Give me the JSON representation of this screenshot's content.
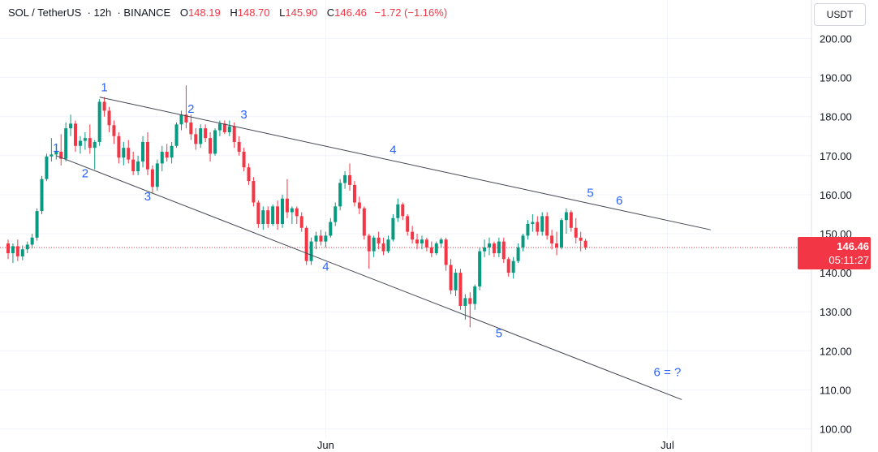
{
  "header": {
    "symbol": "SOL / TetherUS",
    "interval": "12h",
    "exchange": "BINANCE",
    "open_label": "O",
    "open": "148.19",
    "high_label": "H",
    "high": "148.70",
    "low_label": "L",
    "low": "145.90",
    "close_label": "C",
    "close": "146.46",
    "change": "−1.72 (−1.16%)"
  },
  "currency_button": "USDT",
  "price_badge": {
    "price": "146.46",
    "countdown": "05:11:27"
  },
  "colors": {
    "up": "#089981",
    "down": "#f23645",
    "label": "#2962ff",
    "line": "#434651",
    "axis_text": "#131722"
  },
  "chart_data": {
    "type": "candlestick",
    "ylim": [
      100,
      205
    ],
    "y_ticks": [
      "100.00",
      "110.00",
      "120.00",
      "130.00",
      "140.00",
      "150.00",
      "160.00",
      "170.00",
      "180.00",
      "190.00",
      "200.00"
    ],
    "x_ticks": [
      {
        "label": "Jun",
        "index": 66
      },
      {
        "label": "Jul",
        "index": 137
      }
    ],
    "last_price": 146.46,
    "candles": [
      [
        147.5,
        148.5,
        143.5,
        145.0
      ],
      [
        145.0,
        147.5,
        142.5,
        146.8
      ],
      [
        146.8,
        148.5,
        143.0,
        144.2
      ],
      [
        144.2,
        147.0,
        143.2,
        146.0
      ],
      [
        146.0,
        148.0,
        145.0,
        147.2
      ],
      [
        147.2,
        150.0,
        146.2,
        149.0
      ],
      [
        149.0,
        156.5,
        148.2,
        155.8
      ],
      [
        155.8,
        164.8,
        155.0,
        164.0
      ],
      [
        164.0,
        170.5,
        163.5,
        169.8
      ],
      [
        169.8,
        174.5,
        168.5,
        170.3
      ],
      [
        170.3,
        173.0,
        169.0,
        171.0
      ],
      [
        171.0,
        175.5,
        167.5,
        169.2
      ],
      [
        169.2,
        178.5,
        168.5,
        177.0
      ],
      [
        177.0,
        180.5,
        175.0,
        178.2
      ],
      [
        178.2,
        179.0,
        171.0,
        172.5
      ],
      [
        172.5,
        175.0,
        170.5,
        173.8
      ],
      [
        173.8,
        176.0,
        171.5,
        174.5
      ],
      [
        174.5,
        178.0,
        170.5,
        172.0
      ],
      [
        172.0,
        174.0,
        166.5,
        173.5
      ],
      [
        173.5,
        184.5,
        172.5,
        183.8
      ],
      [
        183.8,
        185.0,
        180.0,
        181.5
      ],
      [
        181.5,
        182.5,
        176.0,
        177.8
      ],
      [
        177.8,
        179.0,
        173.0,
        175.0
      ],
      [
        175.0,
        176.0,
        168.0,
        169.5
      ],
      [
        169.5,
        173.5,
        167.5,
        172.0
      ],
      [
        172.0,
        174.0,
        168.0,
        169.0
      ],
      [
        169.0,
        171.0,
        165.0,
        166.0
      ],
      [
        166.0,
        170.0,
        165.0,
        168.5
      ],
      [
        168.5,
        175.0,
        167.0,
        173.5
      ],
      [
        173.5,
        176.0,
        165.0,
        166.5
      ],
      [
        166.5,
        167.5,
        160.5,
        162.0
      ],
      [
        162.0,
        169.0,
        161.0,
        168.0
      ],
      [
        168.0,
        172.5,
        166.0,
        171.0
      ],
      [
        171.0,
        173.0,
        168.5,
        169.5
      ],
      [
        169.5,
        173.5,
        168.0,
        172.5
      ],
      [
        172.5,
        178.5,
        172.0,
        178.0
      ],
      [
        178.0,
        181.5,
        176.5,
        180.5
      ],
      [
        180.5,
        188.0,
        177.0,
        178.5
      ],
      [
        178.5,
        180.5,
        174.0,
        175.5
      ],
      [
        175.5,
        177.0,
        171.5,
        173.0
      ],
      [
        173.0,
        178.0,
        172.0,
        177.0
      ],
      [
        177.0,
        178.0,
        173.5,
        174.5
      ],
      [
        174.5,
        176.0,
        168.5,
        170.5
      ],
      [
        170.5,
        177.0,
        170.0,
        176.5
      ],
      [
        176.5,
        179.0,
        175.0,
        178.2
      ],
      [
        178.2,
        179.0,
        175.5,
        176.0
      ],
      [
        176.0,
        179.0,
        175.0,
        177.5
      ],
      [
        177.5,
        178.5,
        172.0,
        173.5
      ],
      [
        173.5,
        175.0,
        170.0,
        171.0
      ],
      [
        171.0,
        172.0,
        166.0,
        167.0
      ],
      [
        167.0,
        168.0,
        162.5,
        163.5
      ],
      [
        163.5,
        164.5,
        157.0,
        158.0
      ],
      [
        158.0,
        158.5,
        151.5,
        152.5
      ],
      [
        152.5,
        157.0,
        151.0,
        156.0
      ],
      [
        156.0,
        157.0,
        151.5,
        152.5
      ],
      [
        152.5,
        157.5,
        152.0,
        157.0
      ],
      [
        157.0,
        158.5,
        151.0,
        152.5
      ],
      [
        152.5,
        160.0,
        151.5,
        159.0
      ],
      [
        159.0,
        164.0,
        154.0,
        155.5
      ],
      [
        155.5,
        157.0,
        152.5,
        156.5
      ],
      [
        156.5,
        157.0,
        152.5,
        154.5
      ],
      [
        154.5,
        155.5,
        150.5,
        151.5
      ],
      [
        151.5,
        152.0,
        142.0,
        143.0
      ],
      [
        143.0,
        149.0,
        142.0,
        148.0
      ],
      [
        148.0,
        150.5,
        146.0,
        149.5
      ],
      [
        149.5,
        151.0,
        147.0,
        148.0
      ],
      [
        148.0,
        150.5,
        146.5,
        149.5
      ],
      [
        149.5,
        154.0,
        149.0,
        153.0
      ],
      [
        153.0,
        158.0,
        152.0,
        157.0
      ],
      [
        157.0,
        164.0,
        156.0,
        163.0
      ],
      [
        163.0,
        166.0,
        161.5,
        165.0
      ],
      [
        165.0,
        168.0,
        161.0,
        162.5
      ],
      [
        162.5,
        163.5,
        157.0,
        158.0
      ],
      [
        158.0,
        159.5,
        155.0,
        156.5
      ],
      [
        156.5,
        157.0,
        148.5,
        149.5
      ],
      [
        149.5,
        150.0,
        141.0,
        145.5
      ],
      [
        145.5,
        149.5,
        144.0,
        149.0
      ],
      [
        149.0,
        150.5,
        146.0,
        147.5
      ],
      [
        147.5,
        149.0,
        144.5,
        145.5
      ],
      [
        145.5,
        149.5,
        145.0,
        148.5
      ],
      [
        148.5,
        155.0,
        148.0,
        154.0
      ],
      [
        154.0,
        159.0,
        153.0,
        157.5
      ],
      [
        157.5,
        158.0,
        153.5,
        154.5
      ],
      [
        154.5,
        155.0,
        149.5,
        150.5
      ],
      [
        150.5,
        152.0,
        147.5,
        148.5
      ],
      [
        148.5,
        150.0,
        146.0,
        147.5
      ],
      [
        147.5,
        149.5,
        146.0,
        148.5
      ],
      [
        148.5,
        149.0,
        145.5,
        146.5
      ],
      [
        146.5,
        148.0,
        144.0,
        145.0
      ],
      [
        145.0,
        148.0,
        144.5,
        147.5
      ],
      [
        147.5,
        149.0,
        146.5,
        148.5
      ],
      [
        148.5,
        149.0,
        140.5,
        142.0
      ],
      [
        142.0,
        143.5,
        134.5,
        135.5
      ],
      [
        135.5,
        141.0,
        134.0,
        140.0
      ],
      [
        140.0,
        141.0,
        130.5,
        131.5
      ],
      [
        131.5,
        134.5,
        128.0,
        133.5
      ],
      [
        133.5,
        135.0,
        126.0,
        132.0
      ],
      [
        132.0,
        137.0,
        130.5,
        136.5
      ],
      [
        136.5,
        146.5,
        135.5,
        145.5
      ],
      [
        145.5,
        148.5,
        144.0,
        146.5
      ],
      [
        146.5,
        149.0,
        144.5,
        147.5
      ],
      [
        147.5,
        148.0,
        144.0,
        145.0
      ],
      [
        145.0,
        149.0,
        144.0,
        148.0
      ],
      [
        148.0,
        149.0,
        142.5,
        143.5
      ],
      [
        143.5,
        144.0,
        139.0,
        140.0
      ],
      [
        140.0,
        144.0,
        138.5,
        143.0
      ],
      [
        143.0,
        147.5,
        142.5,
        146.5
      ],
      [
        146.5,
        150.0,
        145.5,
        149.5
      ],
      [
        149.5,
        153.5,
        148.5,
        152.5
      ],
      [
        152.5,
        155.0,
        150.5,
        153.0
      ],
      [
        153.0,
        154.5,
        149.5,
        150.5
      ],
      [
        150.5,
        155.5,
        149.5,
        154.5
      ],
      [
        154.5,
        155.5,
        148.5,
        149.5
      ],
      [
        149.5,
        151.0,
        146.0,
        147.5
      ],
      [
        147.5,
        150.5,
        144.5,
        146.5
      ],
      [
        146.5,
        154.0,
        146.0,
        153.5
      ],
      [
        153.5,
        156.5,
        150.0,
        155.5
      ],
      [
        155.5,
        156.0,
        150.5,
        151.5
      ],
      [
        151.5,
        154.0,
        147.5,
        149.0
      ],
      [
        149.0,
        150.5,
        145.5,
        148.19
      ],
      [
        148.19,
        148.7,
        145.9,
        146.46
      ]
    ],
    "trendlines": [
      {
        "name": "upper",
        "from": [
          19,
          185.0
        ],
        "to": [
          146,
          151.0
        ]
      },
      {
        "name": "lower",
        "from": [
          10,
          170.0
        ],
        "to": [
          140,
          107.5
        ]
      }
    ],
    "annotations": [
      {
        "text": "1",
        "index": 20,
        "price": 186.5
      },
      {
        "text": "1",
        "index": 10,
        "price": 171.0
      },
      {
        "text": "2",
        "index": 16,
        "price": 164.5
      },
      {
        "text": "2",
        "index": 38,
        "price": 181.0
      },
      {
        "text": "3",
        "index": 29,
        "price": 158.5
      },
      {
        "text": "3",
        "index": 49,
        "price": 179.5
      },
      {
        "text": "4",
        "index": 66,
        "price": 140.5
      },
      {
        "text": "4",
        "index": 80,
        "price": 170.5
      },
      {
        "text": "5",
        "index": 102,
        "price": 123.5
      },
      {
        "text": "5",
        "index": 121,
        "price": 159.5
      },
      {
        "text": "6",
        "index": 127,
        "price": 157.5
      },
      {
        "text": "6 = ?",
        "index": 137,
        "price": 113.5
      }
    ]
  }
}
